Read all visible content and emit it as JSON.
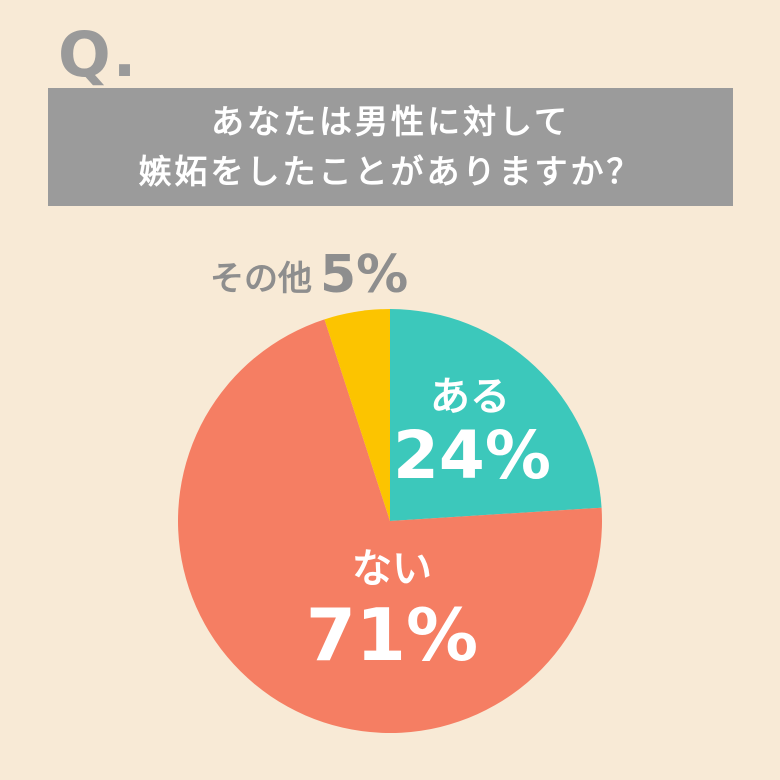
{
  "q_mark": "Q.",
  "question": {
    "line1": "あなたは男性に対して",
    "line2": "嫉妬をしたことがありますか？"
  },
  "colors": {
    "background": "#f8ead6",
    "banner": "#9b9b9b",
    "aru": "#3cc8bb",
    "nai": "#f57e63",
    "other": "#fcc400",
    "other_label": "#8e8e8e"
  },
  "chart_data": {
    "type": "pie",
    "title": "",
    "slices": [
      {
        "label": "ある",
        "value": 24,
        "value_text": "24%",
        "color": "#3cc8bb"
      },
      {
        "label": "ない",
        "value": 71,
        "value_text": "71%",
        "color": "#f57e63"
      },
      {
        "label": "その他",
        "value": 5,
        "value_text": "5%",
        "color": "#fcc400"
      }
    ],
    "start": "12 o'clock, clockwise"
  }
}
